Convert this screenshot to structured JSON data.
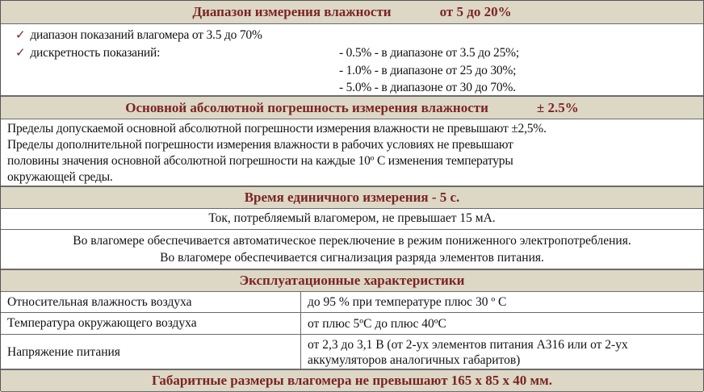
{
  "range": {
    "title": "Диапазон измерения влажности",
    "value": "от 5 до 20%",
    "items": [
      "диапазон показаний влагомера от 3.5 до 70%",
      "дискретность показаний:"
    ],
    "discreteness": [
      "- 0.5% - в диапазоне от 3.5 до 25%;",
      "- 1.0% - в диапазоне от 25 до 30%;",
      "- 5.0% - в диапазоне от 30 до 70%."
    ]
  },
  "error": {
    "title": "Основной абсолютной погрешность измерения влажности",
    "value": "± 2.5%",
    "lines": [
      "Пределы допускаемой основной абсолютной погрешности измерения влажности не превышают  ±2,5%.",
      "Пределы дополнительной погрешности измерения влажности в рабочих условиях не превышают",
      "половины значения основной абсолютной погрешности на каждые 10º С изменения температуры",
      "окружающей среды."
    ]
  },
  "time": {
    "title": "Время единичного измерения  - 5 с.",
    "current": "Ток, потребляемый влагомером, не превышает  15 мА.",
    "notes": [
      "Во влагомере обеспечивается автоматическое переключение в режим пониженного электропотребления.",
      "Во влагомере обеспечивается сигнализация разряда элементов питания."
    ]
  },
  "operating": {
    "title": "Эксплуатационные характеристики",
    "rows": [
      [
        "Относительная влажность воздуха",
        "до 95 % при температуре плюс 30 º С"
      ],
      [
        "Температура окружающего воздуха",
        "от плюс 5ºС до плюс 40ºС"
      ],
      [
        "Напряжение питания",
        "от 2,3 до 3,1 В (от 2-ух элементов питания А316 или от 2-ух аккумуляторов аналогичных габаритов)"
      ]
    ]
  },
  "dimensions": {
    "title": "Габаритные размеры влагомера не превышают  165 х 85 х 40 мм."
  },
  "colors": {
    "header_bg": "#ddd7c6",
    "header_text": "#7b2424"
  }
}
